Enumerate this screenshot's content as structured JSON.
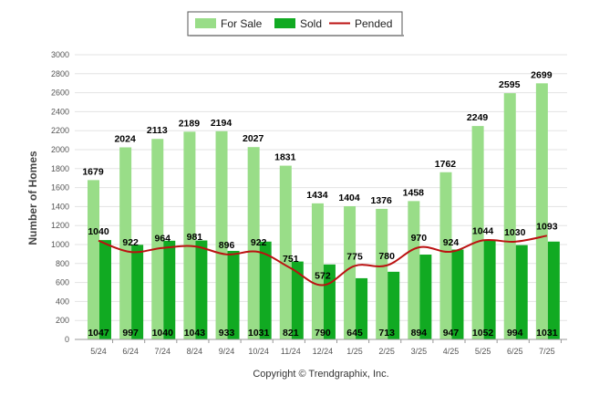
{
  "chart_data": {
    "type": "bar",
    "categories": [
      "5/24",
      "6/24",
      "7/24",
      "8/24",
      "9/24",
      "10/24",
      "11/24",
      "12/24",
      "1/25",
      "2/25",
      "3/25",
      "4/25",
      "5/25",
      "6/25",
      "7/25"
    ],
    "series": [
      {
        "name": "For Sale",
        "type": "bar",
        "color": "#99DD88",
        "values": [
          1679,
          2024,
          2113,
          2189,
          2194,
          2027,
          1831,
          1434,
          1404,
          1376,
          1458,
          1762,
          2249,
          2595,
          2699
        ]
      },
      {
        "name": "Sold",
        "type": "bar",
        "color": "#11AA22",
        "values": [
          1047,
          997,
          1040,
          1043,
          933,
          1031,
          821,
          790,
          645,
          713,
          894,
          947,
          1052,
          994,
          1031
        ]
      },
      {
        "name": "Pended",
        "type": "line",
        "color": "#BB1111",
        "values": [
          1040,
          922,
          964,
          981,
          896,
          922,
          751,
          572,
          775,
          780,
          970,
          924,
          1044,
          1030,
          1093
        ]
      }
    ],
    "ylabel": "Number of Homes",
    "xlabel": "",
    "ylim": [
      0,
      3000
    ],
    "yticks": [
      0,
      200,
      400,
      600,
      800,
      1000,
      1200,
      1400,
      1600,
      1800,
      2000,
      2200,
      2400,
      2600,
      2800,
      3000
    ],
    "grid": true,
    "legend": "top-center"
  },
  "legend": {
    "items": [
      {
        "label": "For Sale",
        "color": "#99DD88",
        "kind": "bar"
      },
      {
        "label": "Sold",
        "color": "#11AA22",
        "kind": "bar"
      },
      {
        "label": "Pended",
        "color": "#BB1111",
        "kind": "line"
      }
    ]
  },
  "footer": {
    "copyright": "Copyright © Trendgraphix, Inc."
  }
}
